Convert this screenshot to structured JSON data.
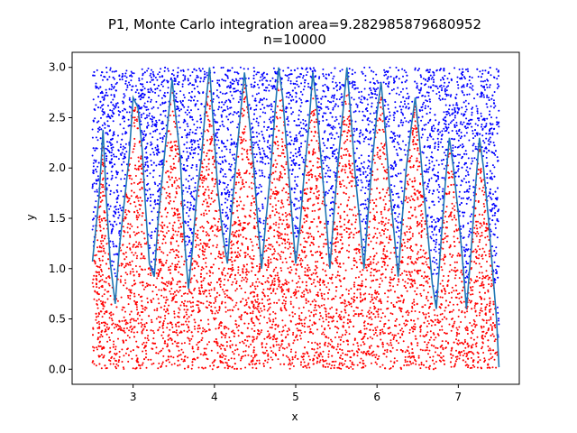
{
  "chart_data": {
    "type": "scatter",
    "title": "P1, Monte Carlo integration area=9.282985879680952",
    "subtitle": "n=10000",
    "xlabel": "x",
    "ylabel": "y",
    "xlim": [
      2.25,
      7.75
    ],
    "ylim": [
      -0.15,
      3.15
    ],
    "x_ticks": [
      "3",
      "4",
      "5",
      "6",
      "7"
    ],
    "x_tick_values": [
      3,
      4,
      5,
      6,
      7
    ],
    "y_ticks": [
      "0.0",
      "0.5",
      "1.0",
      "1.5",
      "2.0",
      "2.5",
      "3.0"
    ],
    "y_tick_values": [
      0.0,
      0.5,
      1.0,
      1.5,
      2.0,
      2.5,
      3.0
    ],
    "grid": false,
    "sample_domain": {
      "x": [
        2.5,
        7.5
      ],
      "y": [
        0,
        3
      ]
    },
    "n": 10000,
    "point_colors": {
      "below_curve": "#ff0000",
      "above_curve": "#0000ff"
    },
    "curve_color": "#1f77b4",
    "curve": {
      "x": [
        2.5,
        2.58,
        2.63,
        2.67,
        2.72,
        2.78,
        2.83,
        2.89,
        2.95,
        3.0,
        3.06,
        3.11,
        3.15,
        3.2,
        3.26,
        3.31,
        3.37,
        3.42,
        3.48,
        3.52,
        3.58,
        3.63,
        3.68,
        3.73,
        3.78,
        3.84,
        3.89,
        3.94,
        3.99,
        4.04,
        4.1,
        4.16,
        4.21,
        4.26,
        4.31,
        4.37,
        4.42,
        4.48,
        4.53,
        4.58,
        4.63,
        4.69,
        4.74,
        4.79,
        4.84,
        4.9,
        4.95,
        5.0,
        5.05,
        5.1,
        5.16,
        5.21,
        5.26,
        5.31,
        5.37,
        5.42,
        5.47,
        5.52,
        5.58,
        5.63,
        5.68,
        5.73,
        5.79,
        5.84,
        5.89,
        5.94,
        6.0,
        6.05,
        6.1,
        6.15,
        6.21,
        6.26,
        6.31,
        6.36,
        6.42,
        6.47,
        6.52,
        6.57,
        6.63,
        6.68,
        6.73,
        6.79,
        6.84,
        6.89,
        6.94,
        7.0,
        7.05,
        7.1,
        7.16,
        7.21,
        7.26,
        7.31,
        7.37,
        7.42,
        7.47,
        7.5
      ],
      "y": [
        1.07,
        1.7,
        2.38,
        1.7,
        1.05,
        0.65,
        1.2,
        1.65,
        2.1,
        2.7,
        2.6,
        2.2,
        1.65,
        1.05,
        0.92,
        1.5,
        2.0,
        2.4,
        2.88,
        2.55,
        2.1,
        1.3,
        0.8,
        1.2,
        1.7,
        2.1,
        2.6,
        3.0,
        2.4,
        1.8,
        1.35,
        1.05,
        1.55,
        2.0,
        2.45,
        2.95,
        2.55,
        2.05,
        1.5,
        1.0,
        1.45,
        1.95,
        2.5,
        3.0,
        2.7,
        2.1,
        1.55,
        1.05,
        1.4,
        1.9,
        2.4,
        2.95,
        2.6,
        2.1,
        1.55,
        1.0,
        1.55,
        2.05,
        2.55,
        3.0,
        2.5,
        1.95,
        1.45,
        1.0,
        1.55,
        2.05,
        2.55,
        2.85,
        2.4,
        1.85,
        1.35,
        0.92,
        1.5,
        2.0,
        2.4,
        2.7,
        2.3,
        1.8,
        1.3,
        0.85,
        0.6,
        1.3,
        1.85,
        2.3,
        2.0,
        1.55,
        1.1,
        0.6,
        1.2,
        1.8,
        2.3,
        2.0,
        1.5,
        1.0,
        0.5,
        0.02
      ]
    }
  }
}
